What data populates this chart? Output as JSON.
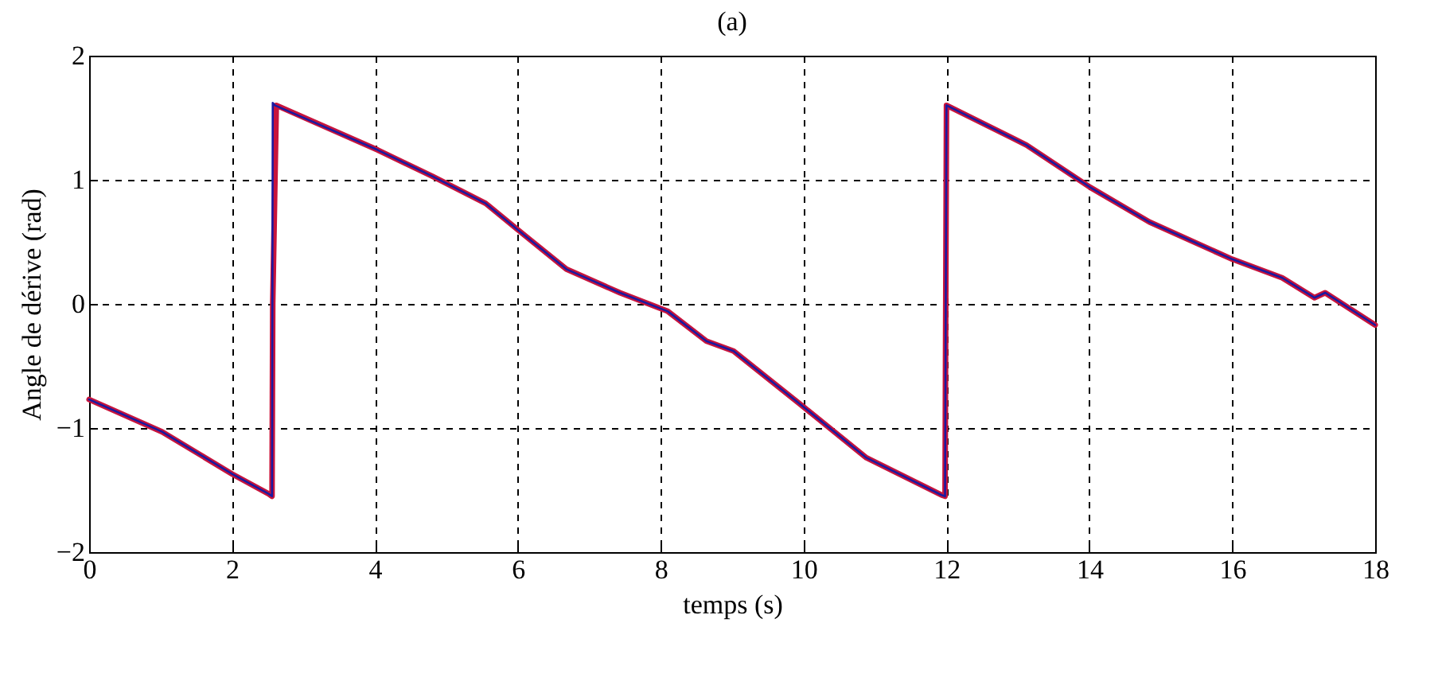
{
  "chart_data": {
    "type": "line",
    "title": "(a)",
    "xlabel": "temps (s)",
    "ylabel": "Angle de dérive (rad)",
    "xlim": [
      0,
      18
    ],
    "xticks": [
      0,
      2,
      4,
      6,
      8,
      10,
      12,
      14,
      16,
      18
    ],
    "ylim": [
      -2,
      2
    ],
    "yticks": [
      -2,
      -1,
      0,
      1,
      2
    ],
    "grid": true,
    "line_style": "solid",
    "series": [
      {
        "color": "#1a1aa0",
        "x": [
          0,
          1.02,
          2,
          2.51,
          2.56,
          2.57,
          2.6,
          4.04,
          4.8,
          5.55,
          6.08,
          6.68,
          7.43,
          8.1,
          8.64,
          9.02,
          10,
          10.88,
          11.93,
          11.98,
          12,
          13.12,
          14.01,
          14.84,
          16,
          16.7,
          17.15,
          17.3,
          18
        ],
        "values": [
          -0.77,
          -1.03,
          -1.37,
          -1.53,
          -1.55,
          1.62,
          1.6,
          1.24,
          1.03,
          0.81,
          0.56,
          0.28,
          0.09,
          -0.06,
          -0.3,
          -0.38,
          -0.83,
          -1.24,
          -1.54,
          -1.55,
          1.6,
          1.28,
          0.94,
          0.66,
          0.36,
          0.21,
          0.05,
          0.09,
          -0.17
        ]
      },
      {
        "color": "#c8143c",
        "x": [
          0,
          1.02,
          2,
          2.51,
          2.56,
          2.57,
          2.62,
          4.04,
          4.8,
          5.55,
          6.08,
          6.68,
          7.43,
          8.1,
          8.64,
          9.02,
          10,
          10.88,
          11.93,
          11.98,
          12,
          13.12,
          14.01,
          14.84,
          16,
          16.7,
          17.15,
          17.3,
          18
        ],
        "values": [
          -0.77,
          -1.03,
          -1.37,
          -1.53,
          -1.55,
          0,
          1.6,
          1.24,
          1.03,
          0.81,
          0.56,
          0.28,
          0.09,
          -0.06,
          -0.3,
          -0.38,
          -0.83,
          -1.24,
          -1.54,
          -1.55,
          1.6,
          1.28,
          0.94,
          0.66,
          0.36,
          0.21,
          0.05,
          0.09,
          -0.17
        ]
      }
    ]
  }
}
